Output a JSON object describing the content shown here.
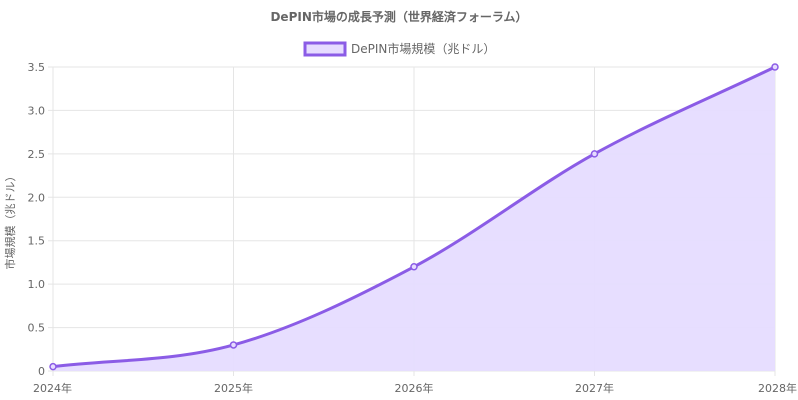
{
  "chart_data": {
    "type": "area",
    "title": "DePIN市場の成長予測（世界経済フォーラム）",
    "categories": [
      "2024年",
      "2025年",
      "2026年",
      "2027年",
      "2028年"
    ],
    "series": [
      {
        "name": "DePIN市場規模（兆ドル）",
        "values": [
          0.05,
          0.3,
          1.2,
          2.5,
          3.5
        ]
      }
    ],
    "xlabel": "",
    "ylabel": "市場規模（兆ドル）",
    "ylim": [
      0,
      3.5
    ],
    "yticks": [
      "0",
      "0.5",
      "1.0",
      "1.5",
      "2.0",
      "2.5",
      "3.0",
      "3.5"
    ],
    "ytick_values": [
      0,
      0.5,
      1.0,
      1.5,
      2.0,
      2.5,
      3.0,
      3.5
    ],
    "grid": true,
    "legend_position": "top",
    "colors": {
      "line": "#8b5ce6",
      "fill": "#e6dcff",
      "grid": "#e5e5e5",
      "text": "#666666"
    }
  }
}
